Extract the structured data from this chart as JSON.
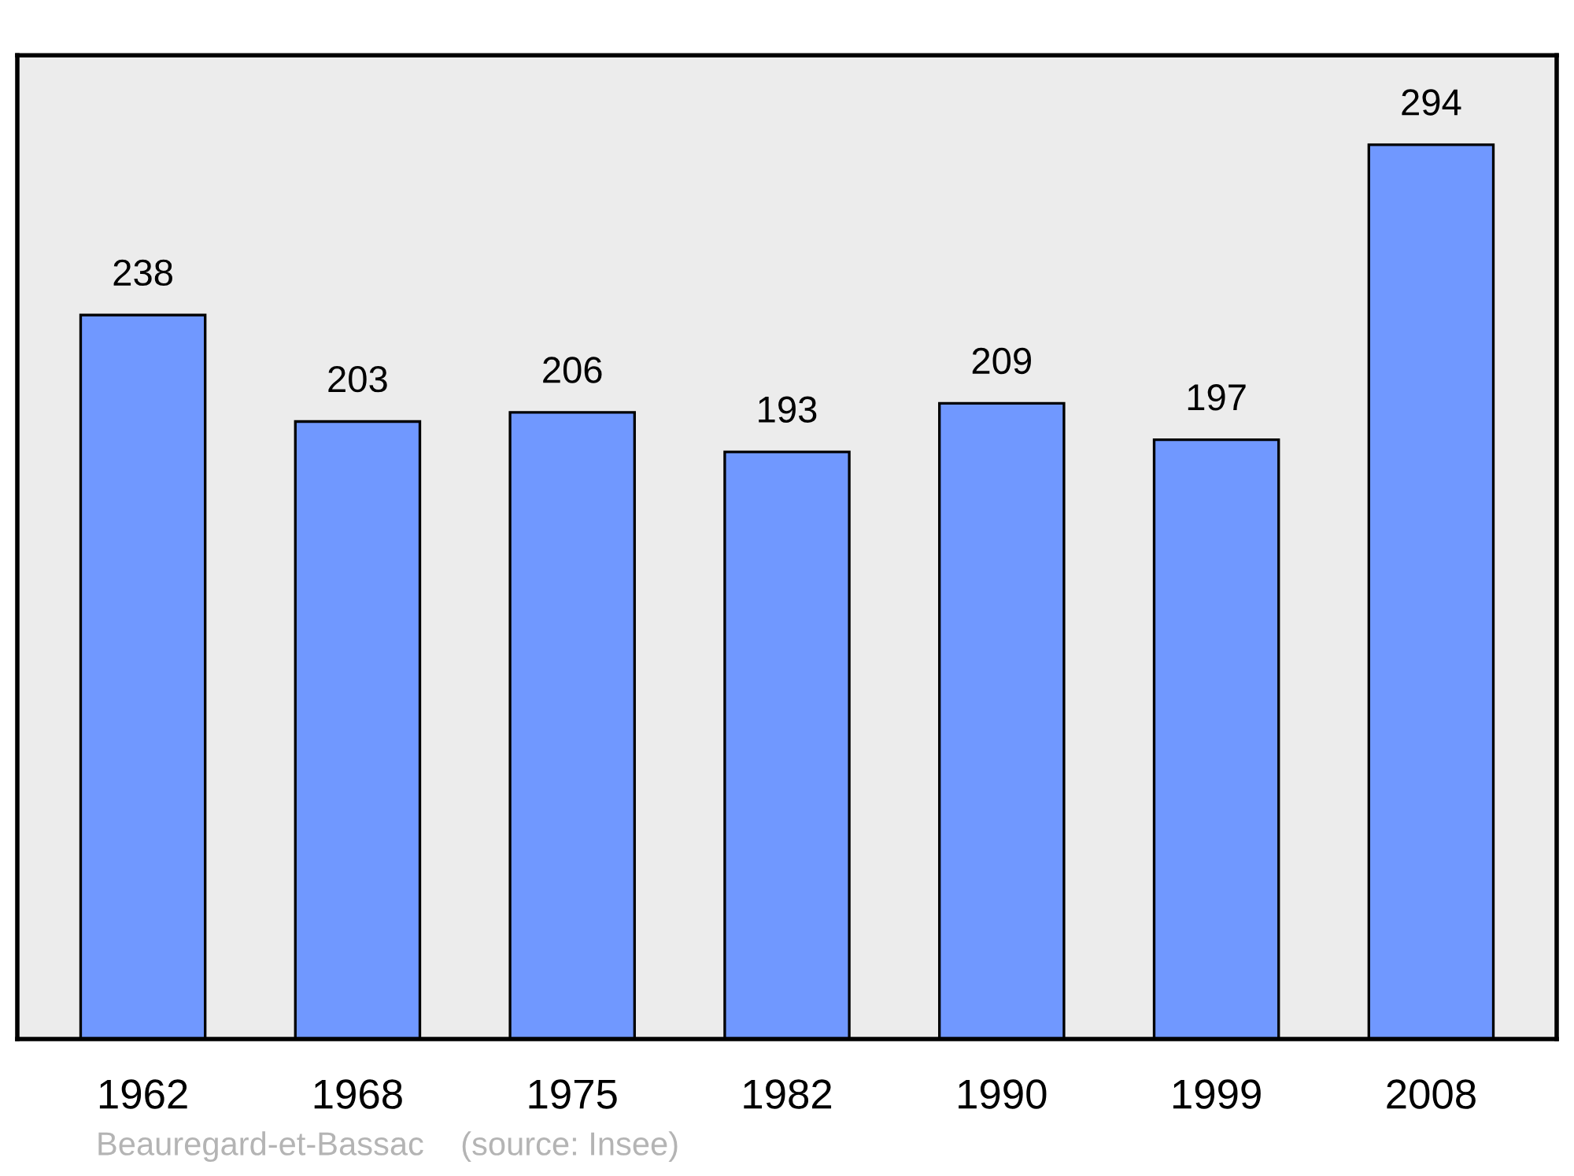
{
  "chart_data": {
    "type": "bar",
    "categories": [
      "1962",
      "1968",
      "1975",
      "1982",
      "1990",
      "1999",
      "2008"
    ],
    "values": [
      238,
      203,
      206,
      193,
      209,
      197,
      294
    ],
    "color": "#7098ff",
    "data_labels": true,
    "grid": false,
    "legend": false,
    "tick_labels": "x",
    "annotations": [
      "Beauregard-et-Bassac    (source: Insee)"
    ]
  }
}
